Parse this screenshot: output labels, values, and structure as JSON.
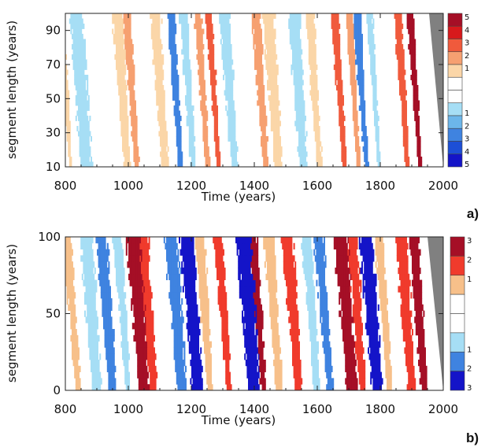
{
  "chart_data": [
    {
      "type": "heatmap",
      "panel_label": "a)",
      "xlabel": "Time (years)",
      "ylabel": "segment length (years)",
      "xlim": [
        800,
        2000
      ],
      "ylim": [
        10,
        100
      ],
      "xticks": [
        800,
        1000,
        1200,
        1400,
        1600,
        1800,
        2000
      ],
      "yticks": [
        10,
        30,
        50,
        70,
        90
      ],
      "colorbar": {
        "positive_labels": [
          "5",
          "4",
          "3",
          "2",
          "1"
        ],
        "negative_labels": [
          "1",
          "2",
          "3",
          "4",
          "5"
        ],
        "positive_colors": [
          "#a50f26",
          "#d7191c",
          "#f05a3c",
          "#f6a071",
          "#fbd6a8"
        ],
        "negative_colors": [
          "#a6def5",
          "#6cb6ea",
          "#3f83e0",
          "#1d4fd6",
          "#1414c8"
        ]
      },
      "bands": [
        {
          "t": 820,
          "s": 10,
          "level": 1
        },
        {
          "t": 870,
          "s": 40,
          "level": -1
        },
        {
          "t": 1000,
          "s": 25,
          "level": 1
        },
        {
          "t": 1030,
          "s": 18,
          "level": 2
        },
        {
          "t": 1120,
          "s": 25,
          "level": 1
        },
        {
          "t": 1170,
          "s": 15,
          "level": -3
        },
        {
          "t": 1210,
          "s": 18,
          "level": -1
        },
        {
          "t": 1255,
          "s": 15,
          "level": 2
        },
        {
          "t": 1290,
          "s": 12,
          "level": 3
        },
        {
          "t": 1340,
          "s": 25,
          "level": -1
        },
        {
          "t": 1440,
          "s": 20,
          "level": 2
        },
        {
          "t": 1480,
          "s": 30,
          "level": 1
        },
        {
          "t": 1560,
          "s": 30,
          "level": -1
        },
        {
          "t": 1610,
          "s": 20,
          "level": 1
        },
        {
          "t": 1690,
          "s": 15,
          "level": 3
        },
        {
          "t": 1735,
          "s": 12,
          "level": 2
        },
        {
          "t": 1760,
          "s": 15,
          "level": -3
        },
        {
          "t": 1800,
          "s": 10,
          "level": -1
        },
        {
          "t": 1890,
          "s": 15,
          "level": 3
        },
        {
          "t": 1930,
          "s": 12,
          "level": 5
        }
      ]
    },
    {
      "type": "heatmap",
      "panel_label": "b)",
      "xlabel": "Time (years)",
      "ylabel": "segment length (years)",
      "xlim": [
        800,
        2000
      ],
      "ylim": [
        0,
        100
      ],
      "xticks": [
        800,
        1000,
        1200,
        1400,
        1600,
        1800,
        2000
      ],
      "yticks": [
        0,
        50,
        100
      ],
      "colorbar": {
        "positive_labels": [
          "3",
          "2",
          "1"
        ],
        "negative_labels": [
          "1",
          "2",
          "3"
        ],
        "positive_colors": [
          "#a50f26",
          "#f03b2c",
          "#f7c08a"
        ],
        "negative_colors": [
          "#a6def5",
          "#3f83e0",
          "#1414c8"
        ]
      },
      "bands": [
        {
          "t": 840,
          "s": 20,
          "level": 1
        },
        {
          "t": 900,
          "s": 35,
          "level": -1
        },
        {
          "t": 950,
          "s": 30,
          "level": -2
        },
        {
          "t": 1000,
          "s": 20,
          "level": -1
        },
        {
          "t": 1050,
          "s": 40,
          "level": 3
        },
        {
          "t": 1080,
          "s": 30,
          "level": 2
        },
        {
          "t": 1170,
          "s": 35,
          "level": -2
        },
        {
          "t": 1220,
          "s": 40,
          "level": -3
        },
        {
          "t": 1260,
          "s": 25,
          "level": 1
        },
        {
          "t": 1320,
          "s": 20,
          "level": 2
        },
        {
          "t": 1400,
          "s": 45,
          "level": -3
        },
        {
          "t": 1430,
          "s": 20,
          "level": 3
        },
        {
          "t": 1480,
          "s": 25,
          "level": 1
        },
        {
          "t": 1540,
          "s": 30,
          "level": 2
        },
        {
          "t": 1600,
          "s": 25,
          "level": -1
        },
        {
          "t": 1640,
          "s": 25,
          "level": -2
        },
        {
          "t": 1710,
          "s": 40,
          "level": 3
        },
        {
          "t": 1745,
          "s": 25,
          "level": 2
        },
        {
          "t": 1790,
          "s": 40,
          "level": -3
        },
        {
          "t": 1830,
          "s": 20,
          "level": 1
        },
        {
          "t": 1900,
          "s": 30,
          "level": 2
        },
        {
          "t": 1940,
          "s": 25,
          "level": 3
        }
      ]
    }
  ]
}
